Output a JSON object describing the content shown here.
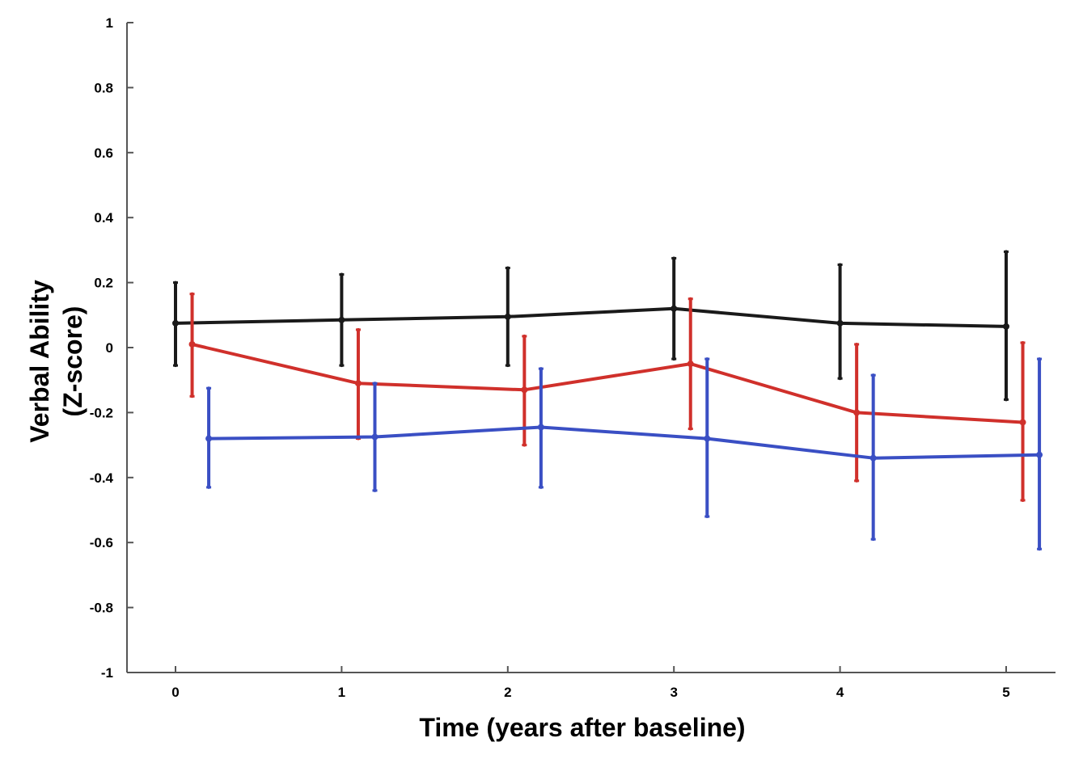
{
  "chart_data": {
    "type": "line",
    "title": "",
    "xlabel": "Time (years after baseline)",
    "ylabel_lines": [
      "Verbal Ability",
      "(Z-score)"
    ],
    "xlim": [
      -0.2,
      5.3
    ],
    "ylim": [
      -1,
      1
    ],
    "x_ticks": [
      0,
      1,
      2,
      3,
      4,
      5
    ],
    "x_tick_labels": [
      "0",
      "1",
      "2",
      "3",
      "4",
      "5"
    ],
    "y_ticks": [
      1,
      0.8,
      0.6,
      0.4,
      0.2,
      0,
      -0.2,
      -0.4,
      -0.6,
      -0.8,
      -1
    ],
    "y_tick_labels": [
      "1",
      "0.8",
      "0.6",
      "0.4",
      "0.2",
      "0",
      "-0.2",
      "-0.4",
      "-0.6",
      "-0.8",
      "-1"
    ],
    "grid": false,
    "legend": "none",
    "series": [
      {
        "color": "#1a1a1a",
        "x": [
          0,
          1,
          2,
          3,
          4,
          5
        ],
        "y": [
          0.075,
          0.085,
          0.095,
          0.12,
          0.075,
          0.065
        ],
        "err_low": [
          -0.055,
          -0.055,
          -0.055,
          -0.035,
          -0.095,
          -0.16
        ],
        "err_high": [
          0.2,
          0.225,
          0.245,
          0.275,
          0.255,
          0.295
        ]
      },
      {
        "color": "#d0302b",
        "x": [
          0.1,
          1.1,
          2.1,
          3.1,
          4.1,
          5.1
        ],
        "y": [
          0.01,
          -0.11,
          -0.13,
          -0.05,
          -0.2,
          -0.23
        ],
        "err_low": [
          -0.15,
          -0.28,
          -0.3,
          -0.25,
          -0.41,
          -0.47
        ],
        "err_high": [
          0.165,
          0.055,
          0.035,
          0.15,
          0.01,
          0.015
        ]
      },
      {
        "color": "#3a4fc4",
        "x": [
          0.2,
          1.2,
          2.2,
          3.2,
          4.2,
          5.2
        ],
        "y": [
          -0.28,
          -0.275,
          -0.245,
          -0.28,
          -0.34,
          -0.33
        ],
        "err_low": [
          -0.43,
          -0.44,
          -0.43,
          -0.52,
          -0.59,
          -0.62
        ],
        "err_high": [
          -0.125,
          -0.11,
          -0.065,
          -0.035,
          -0.085,
          -0.035
        ]
      }
    ]
  }
}
